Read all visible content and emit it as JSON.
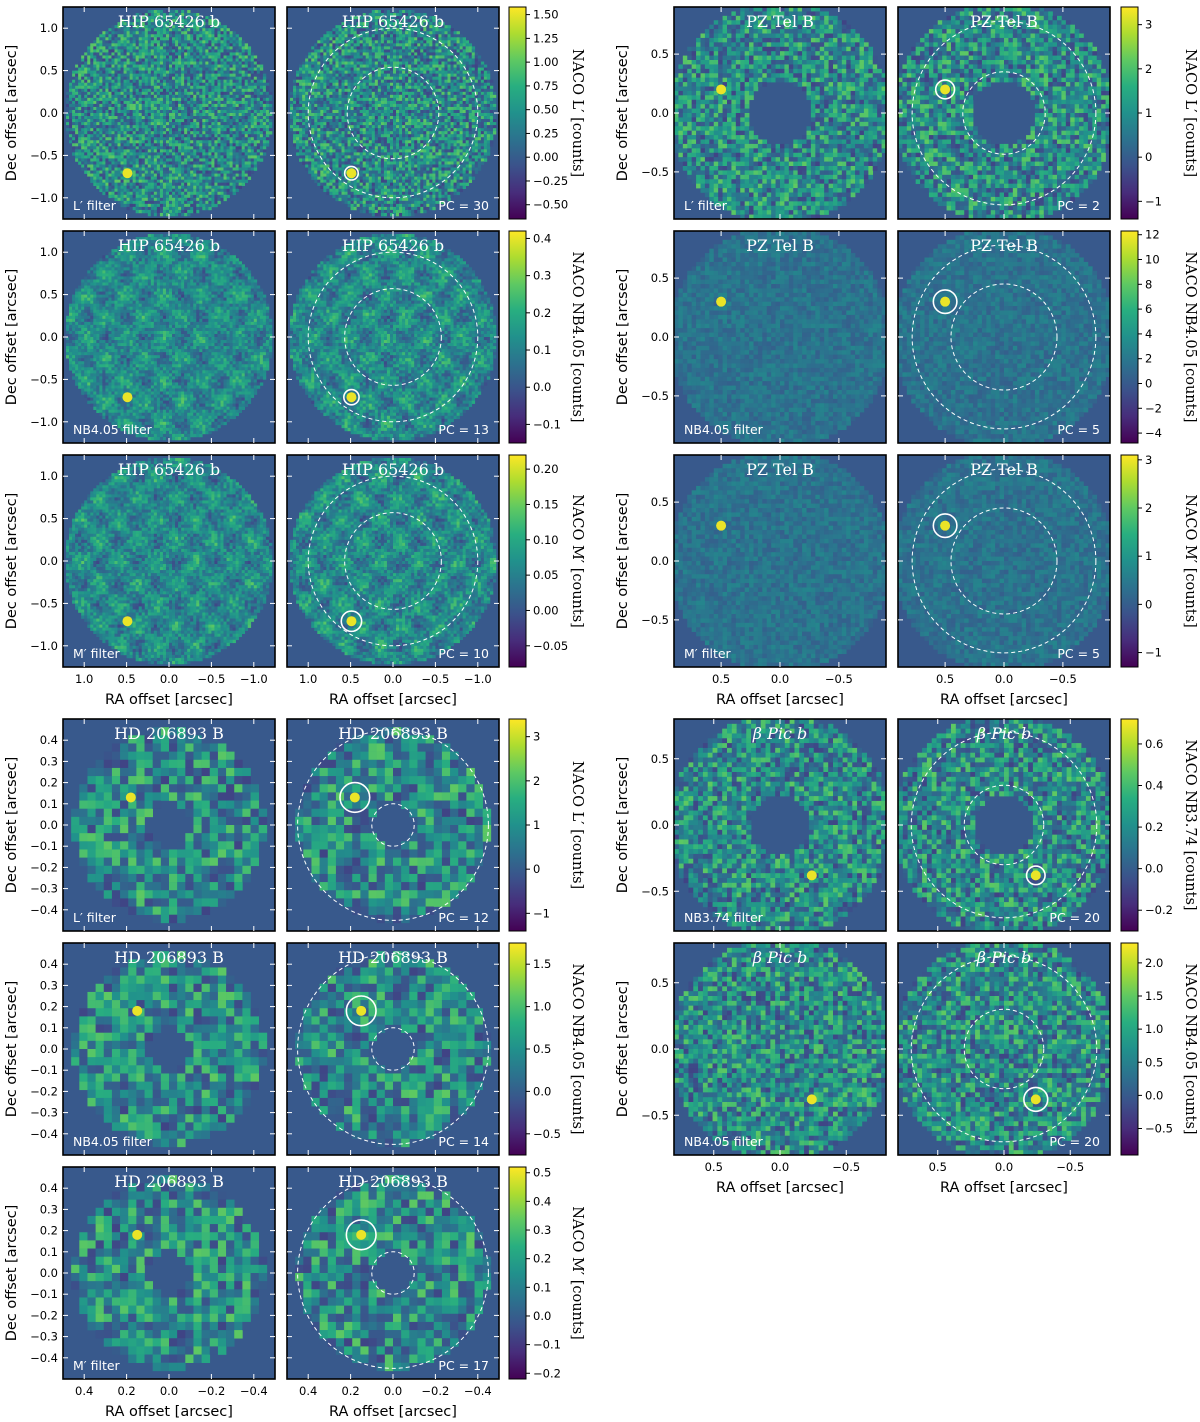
{
  "figure": {
    "colormap": [
      "#440154",
      "#472d7b",
      "#3b528b",
      "#2c728e",
      "#21918c",
      "#28ae80",
      "#5ec962",
      "#addc30",
      "#fde725"
    ],
    "background_color": "#38598c",
    "circle_color": "#ffffff",
    "frame_color": "#000000"
  },
  "chart_data": [
    {
      "type": "heatmap",
      "target": "HIP 65426 b",
      "xlabel": "RA offset [arcsec]",
      "ylabel": "Dec offset [arcsec]",
      "x_range": [
        1.25,
        -1.25
      ],
      "y_range": [
        -1.25,
        1.25
      ],
      "xticks": [
        "1.0",
        "0.5",
        "0.0",
        "−0.5",
        "−1.0"
      ],
      "yticks": [
        "1.0",
        "0.5",
        "0.0",
        "−0.5",
        "−1.0"
      ],
      "rows": [
        {
          "filter_label": "L′ filter",
          "pc_label": "PC = 30",
          "cbar_label": "NACO L′ [counts]",
          "cbar_ticks": [
            "1.50",
            "1.25",
            "1.00",
            "0.75",
            "0.50",
            "0.25",
            "0.00",
            "−0.25",
            "−0.50"
          ],
          "cbar_range": [
            -0.65,
            1.58
          ],
          "companion": [
            0.49,
            -0.71
          ],
          "inner_mask": 0.0,
          "annulus_radii": [
            0.54,
            1.0
          ],
          "aperture_radius": 0.08
        },
        {
          "filter_label": "NB4.05 filter",
          "pc_label": "PC = 13",
          "cbar_label": "NACO NB4.05 [counts]",
          "cbar_ticks": [
            "0.4",
            "0.3",
            "0.2",
            "0.1",
            "0.0",
            "−0.1"
          ],
          "cbar_range": [
            -0.15,
            0.42
          ],
          "companion": [
            0.49,
            -0.71
          ],
          "inner_mask": 0.0,
          "annulus_radii": [
            0.57,
            1.0
          ],
          "aperture_radius": 0.09
        },
        {
          "filter_label": "M′ filter",
          "pc_label": "PC = 10",
          "cbar_label": "NACO M′ [counts]",
          "cbar_ticks": [
            "0.20",
            "0.15",
            "0.10",
            "0.05",
            "0.00",
            "−0.05"
          ],
          "cbar_range": [
            -0.08,
            0.22
          ],
          "companion": [
            0.49,
            -0.71
          ],
          "inner_mask": 0.0,
          "annulus_radii": [
            0.57,
            1.0
          ],
          "aperture_radius": 0.12
        }
      ]
    },
    {
      "type": "heatmap",
      "target": "PZ Tel B",
      "xlabel": "RA offset [arcsec]",
      "ylabel": "Dec offset [arcsec]",
      "x_range": [
        0.9,
        -0.9
      ],
      "y_range": [
        -0.9,
        0.9
      ],
      "xticks": [
        "0.5",
        "0.0",
        "−0.5"
      ],
      "yticks": [
        "0.5",
        "0.0",
        "−0.5"
      ],
      "rows": [
        {
          "filter_label": "L′ filter",
          "pc_label": "PC = 2",
          "cbar_label": "NACO L′ [counts]",
          "cbar_ticks": [
            "3",
            "2",
            "1",
            "0",
            "−1"
          ],
          "cbar_range": [
            -1.4,
            3.4
          ],
          "companion": [
            0.5,
            0.2
          ],
          "inner_mask": 0.27,
          "annulus_radii": [
            0.35,
            0.78
          ],
          "aperture_radius": 0.08
        },
        {
          "filter_label": "NB4.05 filter",
          "pc_label": "PC = 5",
          "cbar_label": "NACO NB4.05 [counts]",
          "cbar_ticks": [
            "12",
            "10",
            "8",
            "6",
            "4",
            "2",
            "0",
            "−2",
            "−4"
          ],
          "cbar_range": [
            -4.8,
            12.3
          ],
          "companion": [
            0.5,
            0.3
          ],
          "inner_mask": 0.0,
          "annulus_radii": [
            0.45,
            0.78
          ],
          "aperture_radius": 0.1
        },
        {
          "filter_label": "M′ filter",
          "pc_label": "PC = 5",
          "cbar_label": "NACO M′ [counts]",
          "cbar_ticks": [
            "3",
            "2",
            "1",
            "0",
            "−1"
          ],
          "cbar_range": [
            -1.3,
            3.1
          ],
          "companion": [
            0.5,
            0.3
          ],
          "inner_mask": 0.0,
          "annulus_radii": [
            0.45,
            0.78
          ],
          "aperture_radius": 0.1
        }
      ]
    },
    {
      "type": "heatmap",
      "target": "HD 206893 B",
      "xlabel": "RA offset [arcsec]",
      "ylabel": "Dec offset [arcsec]",
      "x_range": [
        0.5,
        -0.5
      ],
      "y_range": [
        -0.5,
        0.5
      ],
      "xticks": [
        "0.4",
        "0.2",
        "0.0",
        "−0.2",
        "−0.4"
      ],
      "yticks": [
        "0.4",
        "0.3",
        "0.2",
        "0.1",
        "0.0",
        "−0.1",
        "−0.2",
        "−0.3",
        "−0.4"
      ],
      "rows": [
        {
          "filter_label": "L′ filter",
          "pc_label": "PC = 12",
          "cbar_label": "NACO L′ [counts]",
          "cbar_ticks": [
            "3",
            "2",
            "1",
            "0",
            "−1"
          ],
          "cbar_range": [
            -1.4,
            3.4
          ],
          "companion": [
            0.18,
            0.13
          ],
          "inner_mask": 0.1,
          "annulus_radii": [
            0.1,
            0.45
          ],
          "aperture_radius": 0.07
        },
        {
          "filter_label": "NB4.05 filter",
          "pc_label": "PC = 14",
          "cbar_label": "NACO NB4.05 [counts]",
          "cbar_ticks": [
            "1.5",
            "1.0",
            "0.5",
            "0.0",
            "−0.5"
          ],
          "cbar_range": [
            -0.75,
            1.75
          ],
          "companion": [
            0.15,
            0.18
          ],
          "inner_mask": 0.1,
          "annulus_radii": [
            0.1,
            0.45
          ],
          "aperture_radius": 0.07
        },
        {
          "filter_label": "M′ filter",
          "pc_label": "PC = 17",
          "cbar_label": "NACO M′ [counts]",
          "cbar_ticks": [
            "0.5",
            "0.4",
            "0.3",
            "0.2",
            "0.1",
            "0.0",
            "−0.1",
            "−0.2"
          ],
          "cbar_range": [
            -0.22,
            0.52
          ],
          "companion": [
            0.15,
            0.18
          ],
          "inner_mask": 0.1,
          "annulus_radii": [
            0.1,
            0.45
          ],
          "aperture_radius": 0.07
        }
      ]
    },
    {
      "type": "heatmap",
      "target": "β Pic b",
      "xlabel": "RA offset [arcsec]",
      "ylabel": "Dec offset [arcsec]",
      "x_range": [
        0.8,
        -0.8
      ],
      "y_range": [
        -0.8,
        0.8
      ],
      "xticks": [
        "0.5",
        "0.0",
        "−0.5"
      ],
      "yticks": [
        "0.5",
        "0.0",
        "−0.5"
      ],
      "rows": [
        {
          "filter_label": "NB3.74 filter",
          "pc_label": "PC = 20",
          "cbar_label": "NACO NB3.74 [counts]",
          "cbar_ticks": [
            "0.6",
            "0.4",
            "0.2",
            "0.0",
            "−0.2"
          ],
          "cbar_range": [
            -0.3,
            0.72
          ],
          "companion": [
            -0.24,
            -0.38
          ],
          "inner_mask": 0.22,
          "annulus_radii": [
            0.3,
            0.7
          ],
          "aperture_radius": 0.07
        },
        {
          "filter_label": "NB4.05 filter",
          "pc_label": "PC = 20",
          "cbar_label": "NACO NB4.05 [counts]",
          "cbar_ticks": [
            "2.0",
            "1.5",
            "1.0",
            "0.5",
            "0.0",
            "−0.5"
          ],
          "cbar_range": [
            -0.9,
            2.3
          ],
          "companion": [
            -0.24,
            -0.38
          ],
          "inner_mask": 0.0,
          "annulus_radii": [
            0.3,
            0.7
          ],
          "aperture_radius": 0.09
        }
      ]
    }
  ]
}
